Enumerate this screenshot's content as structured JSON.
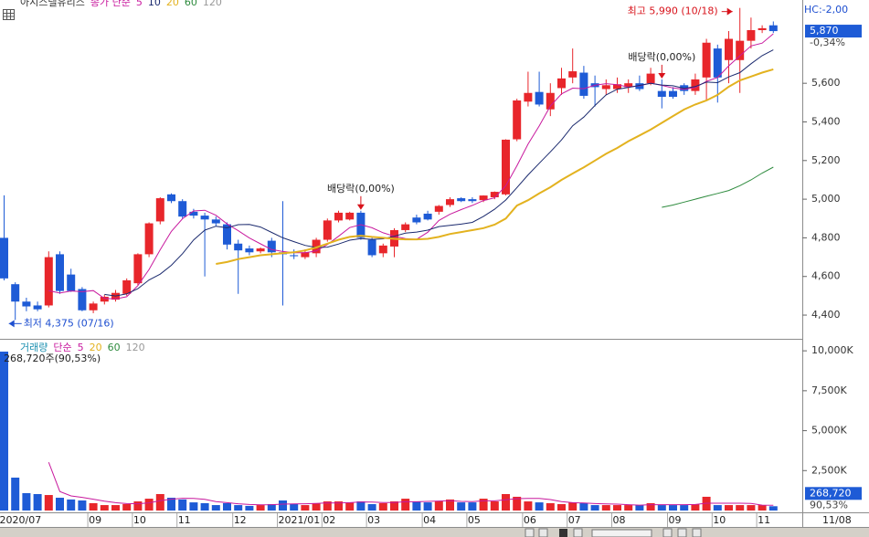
{
  "chart_data": [
    {
      "type": "candlestick",
      "title": "아시스텔유리스",
      "legend_label": "종가 단순",
      "hc_label": "HC:-2,00",
      "up_color": "#e8262b",
      "down_color": "#1e5bd6",
      "categories": [
        "2020/07",
        null,
        null,
        null,
        null,
        null,
        null,
        null,
        "09",
        null,
        null,
        null,
        "10",
        null,
        null,
        null,
        "11",
        null,
        null,
        null,
        null,
        "12",
        null,
        null,
        null,
        "2021/01",
        null,
        null,
        null,
        "02",
        null,
        null,
        null,
        "03",
        null,
        null,
        null,
        null,
        "04",
        null,
        null,
        null,
        "05",
        null,
        null,
        null,
        null,
        "06",
        null,
        null,
        null,
        "07",
        null,
        null,
        null,
        "08",
        null,
        null,
        null,
        null,
        "09",
        null,
        null,
        null,
        "10",
        null,
        null,
        null,
        "11",
        null
      ],
      "last_date": "11/08",
      "open": [
        4800,
        4560,
        4470,
        4450,
        4450,
        4715,
        4610,
        4535,
        4425,
        4470,
        4480,
        4510,
        4565,
        4715,
        4885,
        5025,
        4990,
        4935,
        4915,
        4895,
        4870,
        4770,
        4745,
        4730,
        4785,
        4725,
        4710,
        4700,
        4720,
        4790,
        4890,
        4895,
        4930,
        4790,
        4720,
        4755,
        4840,
        4905,
        4925,
        4935,
        4970,
        5005,
        5000,
        4995,
        5010,
        5025,
        5310,
        5505,
        5555,
        5465,
        5575,
        5630,
        5655,
        5600,
        5570,
        5570,
        5580,
        5600,
        5600,
        5560,
        5560,
        5590,
        5560,
        5630,
        5780,
        5720,
        5720,
        5820,
        5875,
        5900
      ],
      "high": [
        5020,
        4570,
        4490,
        4470,
        4730,
        4730,
        4640,
        4545,
        4470,
        4505,
        4530,
        4590,
        4720,
        4880,
        5010,
        5030,
        5000,
        4950,
        4930,
        4910,
        4880,
        4790,
        4760,
        4750,
        4800,
        4990,
        4740,
        4740,
        4800,
        4900,
        4940,
        4935,
        4940,
        4800,
        4770,
        4850,
        4880,
        4920,
        4940,
        4970,
        5010,
        5010,
        5010,
        5020,
        5040,
        5310,
        5520,
        5660,
        5660,
        5600,
        5680,
        5780,
        5690,
        5640,
        5620,
        5630,
        5620,
        5640,
        5680,
        5620,
        5580,
        5600,
        5650,
        5830,
        5800,
        5870,
        5990,
        5940,
        5900,
        5920
      ],
      "low": [
        4580,
        4375,
        4420,
        4420,
        4440,
        4510,
        4520,
        4420,
        4410,
        4455,
        4470,
        4500,
        4555,
        4700,
        4870,
        4980,
        4900,
        4900,
        4600,
        4860,
        4740,
        4510,
        4710,
        4720,
        4700,
        4450,
        4690,
        4690,
        4700,
        4780,
        4880,
        4890,
        4790,
        4700,
        4700,
        4700,
        4830,
        4870,
        4890,
        4920,
        4960,
        4985,
        4980,
        4985,
        5000,
        5020,
        5300,
        5480,
        5480,
        5430,
        5540,
        5600,
        5520,
        5480,
        5540,
        5550,
        5550,
        5560,
        5590,
        5470,
        5520,
        5540,
        5540,
        5510,
        5500,
        5600,
        5550,
        5780,
        5860,
        5860
      ],
      "close": [
        4590,
        4470,
        4445,
        4430,
        4700,
        4525,
        4525,
        4425,
        4460,
        4495,
        4515,
        4580,
        4715,
        4875,
        5005,
        4990,
        4910,
        4915,
        4895,
        4875,
        4765,
        4735,
        4725,
        4745,
        4725,
        4715,
        4705,
        4725,
        4790,
        4890,
        4930,
        4930,
        4800,
        4710,
        4760,
        4840,
        4870,
        4880,
        4895,
        4965,
        5000,
        4990,
        4990,
        5019,
        5038,
        5308,
        5511,
        5550,
        5490,
        5550,
        5625,
        5662,
        5535,
        5580,
        5590,
        5595,
        5600,
        5570,
        5650,
        5530,
        5530,
        5560,
        5620,
        5810,
        5630,
        5830,
        5820,
        5875,
        5885,
        5870
      ],
      "series": [
        {
          "name": "5",
          "color": "#c81a9e",
          "values": [
            null,
            null,
            null,
            null,
            4527,
            4514,
            4525,
            4521,
            4527,
            4486,
            4484,
            4495,
            4553,
            4636,
            4738,
            4833,
            4899,
            4939,
            4943,
            4917,
            4872,
            4837,
            4799,
            4769,
            4739,
            4729,
            4723,
            4723,
            4732,
            4765,
            4808,
            4853,
            4868,
            4852,
            4826,
            4808,
            4796,
            4792,
            4829,
            4890,
            4922,
            4946,
            4968,
            4993,
            5007,
            5069,
            5173,
            5285,
            5379,
            5482,
            5545,
            5575,
            5572,
            5590,
            5598,
            5593,
            5580,
            5587,
            5601,
            5589,
            5576,
            5568,
            5578,
            5610,
            5630,
            5690,
            5742,
            5793,
            5808,
            5856
          ]
        },
        {
          "name": "10",
          "color": "#1b2a6e",
          "values": [
            null,
            null,
            null,
            null,
            null,
            null,
            null,
            null,
            null,
            4507,
            4499,
            4510,
            4537,
            4582,
            4612,
            4658,
            4718,
            4789,
            4840,
            4860,
            4852,
            4868,
            4869,
            4856,
            4828,
            4800,
            4780,
            4761,
            4750,
            4752,
            4768,
            4788,
            4796,
            4792,
            4795,
            4808,
            4824,
            4830,
            4840,
            4858,
            4865,
            4871,
            4880,
            4911,
            4948,
            4996,
            5060,
            5126,
            5186,
            5245,
            5307,
            5380,
            5425,
            5485,
            5540,
            5569,
            5578,
            5589,
            5600,
            5591,
            5587,
            5574,
            5583,
            5606,
            5603,
            5633,
            5655,
            5701,
            5743,
            5773
          ]
        },
        {
          "name": "20",
          "color": "#e3b21f",
          "values": [
            null,
            null,
            null,
            null,
            null,
            null,
            null,
            null,
            null,
            null,
            null,
            null,
            null,
            null,
            null,
            null,
            null,
            null,
            null,
            4665,
            4675,
            4690,
            4700,
            4710,
            4715,
            4720,
            4725,
            4735,
            4750,
            4770,
            4790,
            4805,
            4811,
            4805,
            4800,
            4795,
            4792,
            4792,
            4795,
            4805,
            4820,
            4830,
            4840,
            4850,
            4868,
            4900,
            4967,
            4995,
            5030,
            5062,
            5100,
            5133,
            5165,
            5200,
            5235,
            5265,
            5300,
            5330,
            5360,
            5395,
            5430,
            5464,
            5490,
            5511,
            5540,
            5582,
            5615,
            5635,
            5655,
            5672
          ]
        },
        {
          "name": "60",
          "color": "#2e8b3e",
          "values": [
            null,
            null,
            null,
            null,
            null,
            null,
            null,
            null,
            null,
            null,
            null,
            null,
            null,
            null,
            null,
            null,
            null,
            null,
            null,
            null,
            null,
            null,
            null,
            null,
            null,
            null,
            null,
            null,
            null,
            null,
            null,
            null,
            null,
            null,
            null,
            null,
            null,
            null,
            null,
            null,
            null,
            null,
            null,
            null,
            null,
            null,
            null,
            null,
            null,
            null,
            null,
            null,
            null,
            null,
            null,
            null,
            null,
            null,
            null,
            4958,
            4970,
            4985,
            5000,
            5015,
            5030,
            5045,
            5070,
            5100,
            5135,
            5166
          ]
        }
      ],
      "legend_more": [
        {
          "name": "120",
          "color": "#999999"
        }
      ],
      "ylim": [
        4282,
        6031
      ],
      "yticks": [
        {
          "value": 4400,
          "label": "4,400"
        },
        {
          "value": 4600,
          "label": "4,600"
        },
        {
          "value": 4800,
          "label": "4,800"
        },
        {
          "value": 5000,
          "label": "5,000"
        },
        {
          "value": 5200,
          "label": "5,200"
        },
        {
          "value": 5400,
          "label": "5,400"
        },
        {
          "value": 5600,
          "label": "5,600"
        }
      ],
      "last_price": {
        "value": 5870,
        "label": "5,870"
      },
      "change_label": "-0,34%",
      "annotations": [
        {
          "text": "최고 5,990 (10/18)",
          "index": 66,
          "value": 5990,
          "dir": "right",
          "color": "#d8131b"
        },
        {
          "text": "최저 4,375 (07/16)",
          "index": 1,
          "value": 4375,
          "dir": "left",
          "color": "#1e4fd0"
        },
        {
          "text": "배당락(0,00%)",
          "index": 32,
          "value": 4940,
          "dir": "down",
          "color": "#d8131b"
        },
        {
          "text": "배당락(0,00%)",
          "index": 59,
          "value": 5620,
          "dir": "down",
          "color": "#d8131b"
        }
      ]
    },
    {
      "type": "bar",
      "title": "거래량",
      "legend_label": "단순",
      "volume_label": "268,720주(90,53%)",
      "values": [
        9950000,
        2060000,
        1090000,
        1030000,
        970000,
        800000,
        690000,
        630000,
        460000,
        340000,
        340000,
        400000,
        570000,
        740000,
        1030000,
        800000,
        690000,
        510000,
        460000,
        340000,
        460000,
        340000,
        290000,
        340000,
        400000,
        630000,
        400000,
        340000,
        460000,
        570000,
        570000,
        510000,
        570000,
        400000,
        460000,
        570000,
        740000,
        570000,
        510000,
        570000,
        690000,
        510000,
        510000,
        740000,
        570000,
        1030000,
        860000,
        570000,
        510000,
        460000,
        400000,
        510000,
        460000,
        340000,
        340000,
        340000,
        340000,
        340000,
        460000,
        340000,
        340000,
        340000,
        400000,
        860000,
        340000,
        340000,
        340000,
        340000,
        340000,
        268720
      ],
      "series": [
        {
          "name": "5",
          "color": "#c81a9e",
          "values": [
            null,
            null,
            null,
            null,
            3020000,
            1190000,
            916000,
            824000,
            710000,
            584000,
            492000,
            434000,
            422000,
            478000,
            616000,
            708000,
            766000,
            754000,
            698000,
            560000,
            492000,
            422000,
            378000,
            354000,
            366000,
            400000,
            412000,
            422000,
            446000,
            480000,
            468000,
            490000,
            536000,
            524000,
            502000,
            502000,
            548000,
            548000,
            570000,
            592000,
            616000,
            570000,
            558000,
            604000,
            604000,
            672000,
            742000,
            754000,
            756000,
            686000,
            560000,
            490000,
            468000,
            434000,
            410000,
            398000,
            364000,
            340000,
            364000,
            364000,
            364000,
            364000,
            376000,
            456000,
            456000,
            456000,
            456000,
            444000,
            340000,
            326000
          ]
        }
      ],
      "legend_more": [
        {
          "name": "20",
          "color": "#e3b21f"
        },
        {
          "name": "60",
          "color": "#2e8b3e"
        },
        {
          "name": "120",
          "color": "#999999"
        }
      ],
      "ylim": [
        0,
        10580000
      ],
      "yticks": [
        {
          "value": 2500000,
          "label": "2,500K"
        },
        {
          "value": 5000000,
          "label": "5,000K"
        },
        {
          "value": 7500000,
          "label": "7,500K"
        },
        {
          "value": 10000000,
          "label": "10,000K"
        }
      ],
      "last_value": {
        "value": 268720,
        "label": "268,720"
      },
      "pct_label": "90,53%"
    }
  ]
}
